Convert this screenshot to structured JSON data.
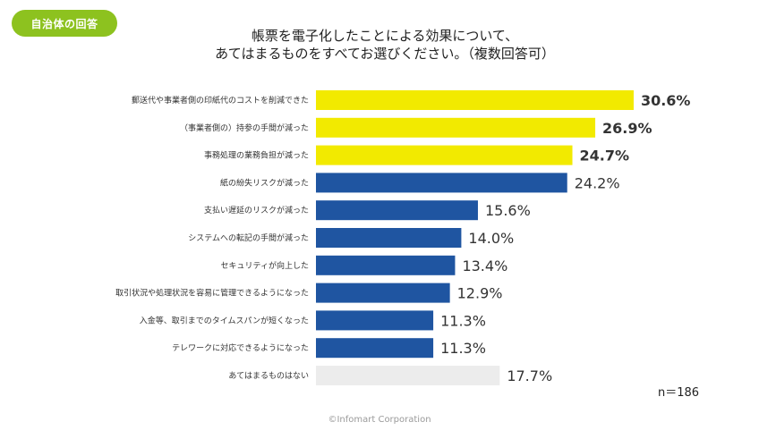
{
  "badge": "自治体の回答",
  "title_lines": [
    "帳票を電子化したことによる効果について、",
    "あてはまるものをすべてお選びください。（複数回答可）"
  ],
  "n_label": "n＝186",
  "footer": "©Infomart Corporation",
  "colors": {
    "highlight": "#f2ea00",
    "primary": "#1f55a1",
    "none": "#ececec",
    "badge": "#8dc21f"
  },
  "chart_data": {
    "type": "bar",
    "orientation": "horizontal",
    "unit": "%",
    "xlim": [
      0,
      50
    ],
    "grid": false,
    "categories": [
      "郵送代や事業者側の印紙代のコストを削減できた",
      "（事業者側の）持参の手間が減った",
      "事務処理の業務負担が減った",
      "紙の紛失リスクが減った",
      "支払い遅延のリスクが減った",
      "システムへの転記の手間が減った",
      "セキュリティが向上した",
      "取引状況や処理状況を容易に管理できるようになった",
      "入金等、取引までのタイムスパンが短くなった",
      "テレワークに対応できるようになった",
      "あてはまるものはない"
    ],
    "values": [
      30.6,
      26.9,
      24.7,
      24.2,
      15.6,
      14.0,
      13.4,
      12.9,
      11.3,
      11.3,
      17.7
    ],
    "value_labels": [
      "30.6%",
      "26.9%",
      "24.7%",
      "24.2%",
      "15.6%",
      "14.0%",
      "13.4%",
      "12.9%",
      "11.3%",
      "11.3%",
      "17.7%"
    ],
    "color_groups": [
      "highlight",
      "highlight",
      "highlight",
      "primary",
      "primary",
      "primary",
      "primary",
      "primary",
      "primary",
      "primary",
      "none"
    ]
  }
}
